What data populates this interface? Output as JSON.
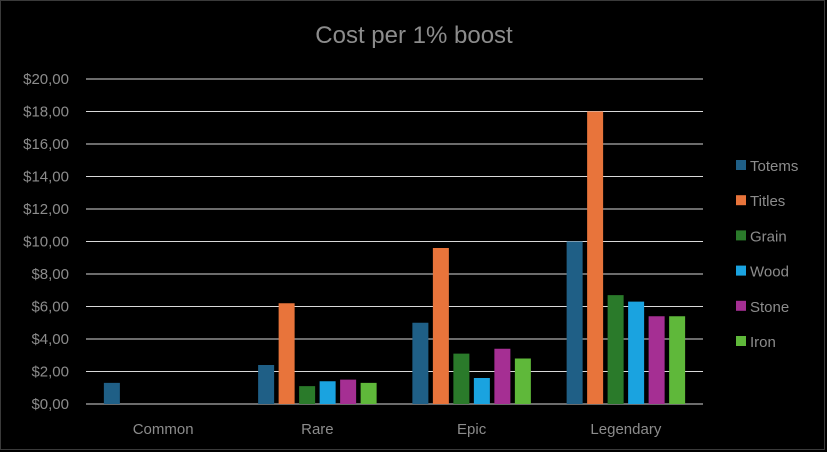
{
  "chart_data": {
    "type": "bar",
    "title": "Cost per 1% boost",
    "xlabel": "",
    "ylabel": "",
    "categories": [
      "Common",
      "Rare",
      "Epic",
      "Legendary"
    ],
    "ylim": [
      0,
      20
    ],
    "yticks": [
      0,
      2,
      4,
      6,
      8,
      10,
      12,
      14,
      16,
      18,
      20
    ],
    "ytick_labels": [
      "$0,00",
      "$2,00",
      "$4,00",
      "$6,00",
      "$8,00",
      "$10,00",
      "$12,00",
      "$14,00",
      "$16,00",
      "$18,00",
      "$20,00"
    ],
    "grid": true,
    "legend_position": "right",
    "series": [
      {
        "name": "Totems",
        "color": "#1f5f86",
        "values": [
          1.3,
          2.4,
          5.0,
          10.0
        ]
      },
      {
        "name": "Titles",
        "color": "#e8743b",
        "values": [
          null,
          6.2,
          9.6,
          18.0
        ]
      },
      {
        "name": "Grain",
        "color": "#2a7a2a",
        "values": [
          null,
          1.1,
          3.1,
          6.7
        ]
      },
      {
        "name": "Wood",
        "color": "#1aa3e0",
        "values": [
          null,
          1.4,
          1.6,
          6.3
        ]
      },
      {
        "name": "Stone",
        "color": "#a52f93",
        "values": [
          null,
          1.5,
          3.4,
          5.4
        ]
      },
      {
        "name": "Iron",
        "color": "#5fb83a",
        "values": [
          null,
          1.3,
          2.8,
          5.4
        ]
      }
    ]
  }
}
